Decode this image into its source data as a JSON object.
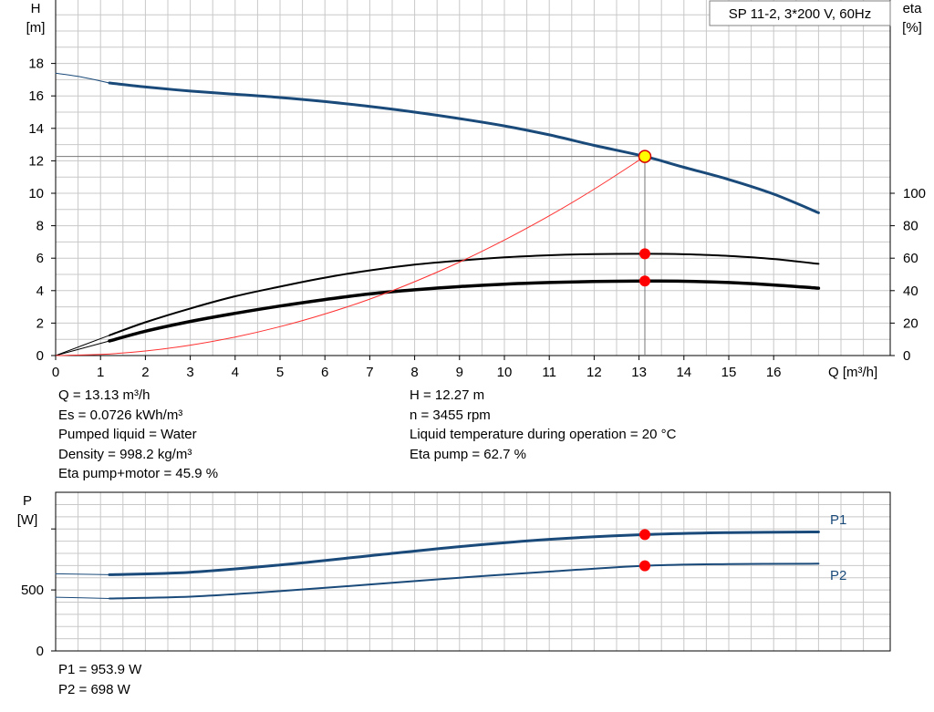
{
  "title_box": "SP 11-2, 3*200 V, 60Hz",
  "colors": {
    "curve": "#1a4a7a",
    "eta": "#000000",
    "system": "#ff3030",
    "marker": "#ff0000",
    "duty": "#ffff00",
    "grid": "#c8c8c8"
  },
  "labels": {
    "h_axis_name": "H",
    "h_axis_unit": "[m]",
    "eta_axis_name": "eta",
    "eta_axis_unit": "[%]",
    "q_axis_label": "Q [m³/h]",
    "p_axis_name": "P",
    "p_axis_unit": "[W]"
  },
  "info_left": [
    "Q = 13.13 m³/h",
    "Es = 0.0726 kWh/m³",
    "Pumped liquid = Water",
    "Density = 998.2 kg/m³",
    "Eta pump+motor = 45.9 %"
  ],
  "info_right": [
    "H = 12.27 m",
    "n = 3455 rpm",
    "Liquid temperature during operation = 20 °C",
    "Eta pump = 62.7 %"
  ],
  "power_info": [
    "P1 = 953.9 W",
    "P2 = 698 W"
  ],
  "chart_data": [
    {
      "type": "line",
      "x_label": "Q [m³/h]",
      "y_label": "H [m]",
      "y2_label": "eta [%]",
      "xlim": [
        0,
        18
      ],
      "ylim": [
        0,
        19
      ],
      "y2lim": [
        0,
        100
      ],
      "x_ticks": [
        0,
        1,
        2,
        3,
        4,
        5,
        6,
        7,
        8,
        9,
        10,
        11,
        12,
        13,
        14,
        15,
        16
      ],
      "y_ticks": [
        0,
        2,
        4,
        6,
        8,
        10,
        12,
        14,
        16,
        18
      ],
      "y2_ticks": [
        0,
        20,
        40,
        60,
        80,
        100
      ],
      "grid": true,
      "duty_point": {
        "q": 13.13,
        "h": 12.27,
        "eta_pump": 62.7,
        "eta_total": 45.9
      },
      "series": [
        {
          "role": "head_extrapolated",
          "axis": "h",
          "x": [
            0,
            0.5,
            1.2
          ],
          "y": [
            17.4,
            17.2,
            16.8
          ]
        },
        {
          "role": "head",
          "axis": "h",
          "x": [
            1.2,
            2,
            3,
            4,
            5,
            6,
            7,
            8,
            9,
            10,
            11,
            12,
            13.13,
            14,
            15,
            16,
            17
          ],
          "y": [
            16.8,
            16.55,
            16.3,
            16.1,
            15.9,
            15.65,
            15.35,
            15.0,
            14.6,
            14.15,
            13.6,
            12.95,
            12.27,
            11.6,
            10.85,
            9.95,
            8.8
          ]
        },
        {
          "role": "eta_pump_extrapolated",
          "axis": "eta",
          "x": [
            0,
            1.2
          ],
          "y": [
            0,
            12.5
          ]
        },
        {
          "role": "eta_pump",
          "axis": "eta",
          "x": [
            1.2,
            2,
            3,
            4,
            5,
            6,
            7,
            8,
            9,
            10,
            11,
            12,
            13.13,
            14,
            15,
            16,
            17
          ],
          "y": [
            12.5,
            20.5,
            29,
            36.5,
            42.5,
            48,
            52.5,
            56,
            58.5,
            60.5,
            61.8,
            62.5,
            62.7,
            62.4,
            61.4,
            59.5,
            56.5
          ]
        },
        {
          "role": "eta_total_extrapolated",
          "axis": "eta",
          "x": [
            0,
            1.2
          ],
          "y": [
            0,
            9
          ]
        },
        {
          "role": "eta_total",
          "axis": "eta",
          "x": [
            1.2,
            2,
            3,
            4,
            5,
            6,
            7,
            8,
            9,
            10,
            11,
            12,
            13.13,
            14,
            15,
            16,
            17
          ],
          "y": [
            9,
            15,
            21,
            26,
            30.5,
            34.5,
            38,
            40.5,
            42.5,
            44,
            45,
            45.6,
            45.9,
            45.8,
            45.0,
            43.5,
            41.5
          ]
        },
        {
          "role": "system_curve",
          "axis": "h",
          "x": [
            0,
            1,
            2,
            3,
            4,
            5,
            6,
            7,
            8,
            9,
            10,
            11,
            12,
            13.13
          ],
          "y": [
            0,
            0.07,
            0.28,
            0.64,
            1.14,
            1.78,
            2.56,
            3.48,
            4.55,
            5.76,
            7.12,
            8.61,
            10.25,
            12.27
          ]
        }
      ]
    },
    {
      "type": "line",
      "y_label": "P [W]",
      "xlim": [
        0,
        18
      ],
      "ylim": [
        0,
        1000
      ],
      "y_ticks": [
        0,
        500
      ],
      "grid": true,
      "duty_point": {
        "q": 13.13,
        "p1": 953.9,
        "p2": 698
      },
      "series": [
        {
          "name": "P1",
          "role": "p1",
          "x": [
            1.2,
            3,
            5,
            7,
            9,
            11,
            13.13,
            15,
            17
          ],
          "y": [
            625,
            645,
            705,
            780,
            855,
            915,
            953.9,
            970,
            975
          ]
        },
        {
          "name": "P1",
          "role": "p1_extrapolated",
          "x": [
            0,
            1.2
          ],
          "y": [
            632,
            625
          ]
        },
        {
          "name": "P2",
          "role": "p2",
          "x": [
            1.2,
            3,
            5,
            7,
            9,
            11,
            13.13,
            15,
            17
          ],
          "y": [
            430,
            445,
            490,
            545,
            600,
            650,
            698,
            712,
            715
          ]
        },
        {
          "name": "P2",
          "role": "p2_extrapolated",
          "x": [
            0,
            1.2
          ],
          "y": [
            440,
            430
          ]
        }
      ]
    }
  ]
}
